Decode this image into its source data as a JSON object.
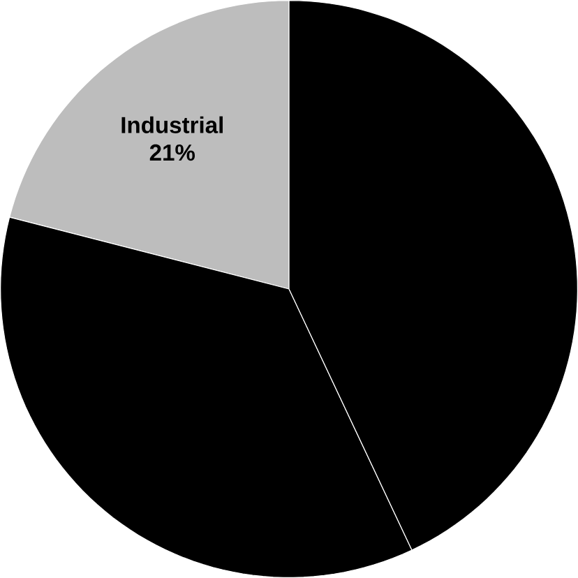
{
  "chart_data": {
    "type": "pie",
    "categories": [
      "Industrial",
      null,
      null
    ],
    "values": [
      21,
      36,
      43
    ],
    "colors": [
      "#bdbdbd",
      "#000000",
      "#000000"
    ],
    "value_labels": [
      "21%",
      null,
      null
    ]
  }
}
